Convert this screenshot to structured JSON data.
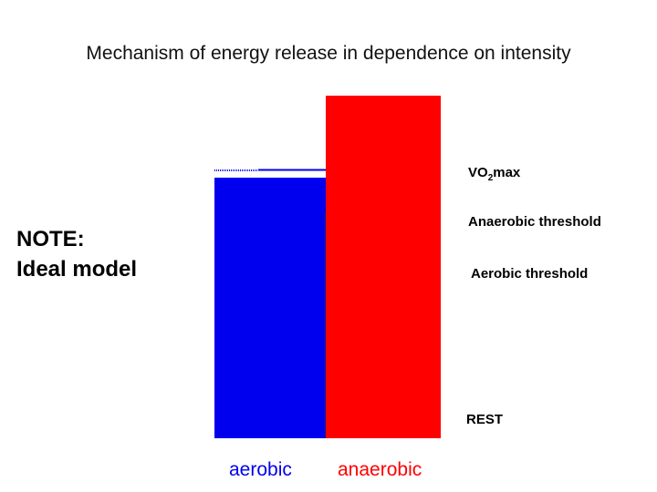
{
  "title": "Mechanism of energy release in dependence on intensity",
  "note": {
    "line1": "NOTE:",
    "line2": "Ideal model"
  },
  "thresholds": {
    "vo2max": {
      "main": "VO",
      "sub": "2",
      "suffix": "max"
    },
    "anaerobic": "Anaerobic threshold",
    "aerobic": "Aerobic threshold",
    "rest": "REST"
  },
  "categories": {
    "aerobic": {
      "label": "aerobic",
      "color": "#0000ee"
    },
    "anaerobic": {
      "label": "anaerobic",
      "color": "#ff0000"
    }
  }
}
